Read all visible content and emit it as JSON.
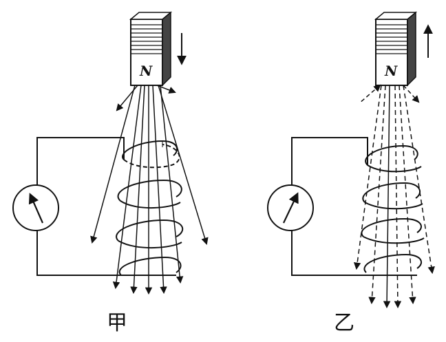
{
  "figures": [
    {
      "id": "jia",
      "caption": "甲",
      "magnet_pole": "N",
      "magnet_motion": "down",
      "meter_needle": "left",
      "icons": {
        "magnet": "bar-magnet-icon",
        "meter": "galvanometer-icon",
        "coil": "coil-icon",
        "motion": "arrow-down-icon"
      }
    },
    {
      "id": "yi",
      "caption": "乙",
      "magnet_pole": "N",
      "magnet_motion": "up",
      "meter_needle": "right",
      "icons": {
        "magnet": "bar-magnet-icon",
        "meter": "galvanometer-icon",
        "coil": "coil-icon",
        "motion": "arrow-up-icon"
      }
    }
  ],
  "colors": {
    "ink": "#111111",
    "background": "#ffffff"
  }
}
